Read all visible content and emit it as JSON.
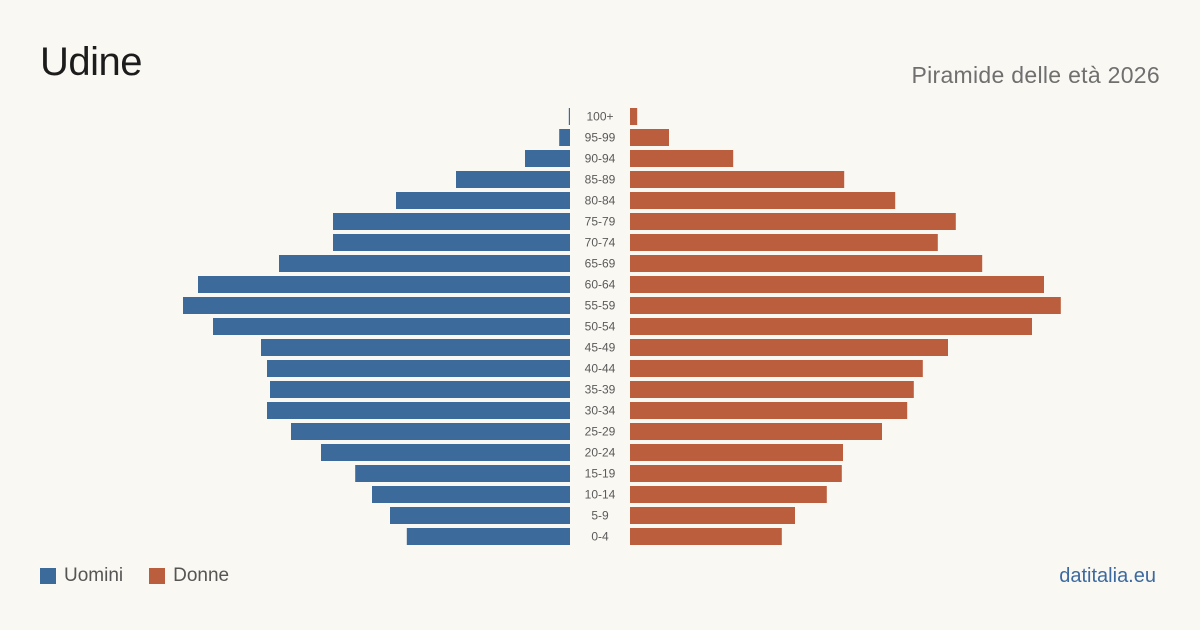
{
  "title": "Udine",
  "subtitle": "Piramide delle età 2026",
  "source": "datitalia.eu",
  "colors": {
    "men": "#3c6a9b",
    "women": "#bb5e3e"
  },
  "legend": [
    {
      "label": "Uomini",
      "color": "#3c6a9b"
    },
    {
      "label": "Donne",
      "color": "#bb5e3e"
    }
  ],
  "chart_data": {
    "type": "bar",
    "orientation": "horizontal-pyramid",
    "categories": [
      "100+",
      "95-99",
      "90-94",
      "85-89",
      "80-84",
      "75-79",
      "70-74",
      "65-69",
      "60-64",
      "55-59",
      "50-54",
      "45-49",
      "40-44",
      "35-39",
      "30-34",
      "25-29",
      "20-24",
      "15-19",
      "10-14",
      "5-9",
      "0-4"
    ],
    "series": [
      {
        "name": "Uomini",
        "values": [
          0.2,
          1.8,
          7.5,
          19,
          29,
          39.5,
          39.5,
          48.5,
          62,
          64.5,
          59.5,
          51.5,
          50.5,
          50,
          50.5,
          46.5,
          41.5,
          35.8,
          33,
          30,
          27.2
        ]
      },
      {
        "name": "Donne",
        "values": [
          1.2,
          6.5,
          17.2,
          35.7,
          44.2,
          54.3,
          51.3,
          58.7,
          69,
          71.8,
          67,
          53,
          48.8,
          47.3,
          46.2,
          42,
          35.5,
          35.3,
          32.8,
          27.5,
          25.3
        ]
      }
    ],
    "xlim": [
      0,
      75
    ],
    "legend_position": "bottom-left"
  }
}
